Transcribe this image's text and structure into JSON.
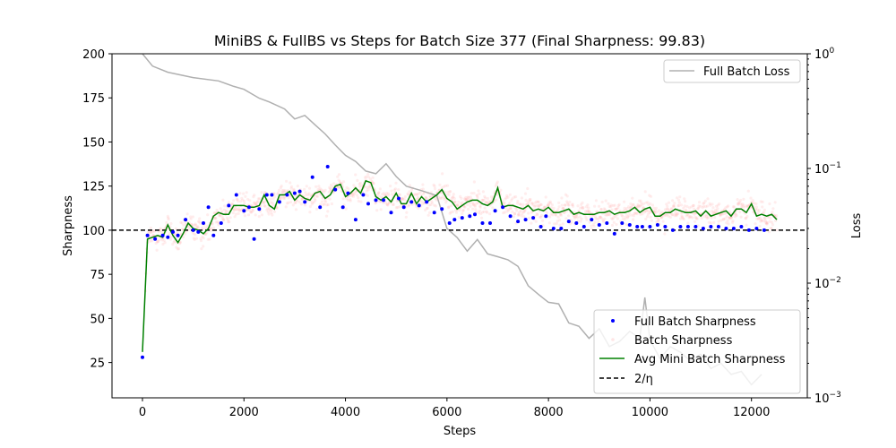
{
  "chart_data": {
    "type": "line",
    "title": "MiniBS & FullBS vs Steps for Batch Size 377 (Final Sharpness: 99.83)",
    "xlabel": "Steps",
    "ylabel": "Sharpness",
    "y2label": "Loss",
    "xlim": [
      -600,
      13100
    ],
    "ylim": [
      5,
      200
    ],
    "y2lim": [
      0.001,
      1
    ],
    "y2scale": "log",
    "xticks": [
      0,
      2000,
      4000,
      6000,
      8000,
      10000,
      12000
    ],
    "xtick_labels": [
      "0",
      "2000",
      "4000",
      "6000",
      "8000",
      "10000",
      "12000"
    ],
    "yticks": [
      25,
      50,
      75,
      100,
      125,
      150,
      175,
      200
    ],
    "ytick_labels": [
      "25",
      "50",
      "75",
      "100",
      "125",
      "150",
      "175",
      "200"
    ],
    "y2ticks": [
      0.001,
      0.01,
      0.1,
      1
    ],
    "y2tick_labels": [
      "10",
      "10",
      "10",
      "10"
    ],
    "y2tick_exponents": [
      "−3",
      "−2",
      "−1",
      "0"
    ],
    "threshold": 100,
    "colors": {
      "full_batch_loss": "#b0b0b0",
      "full_batch_sharpness": "#0000ff",
      "batch_sharpness": "#ff9999",
      "avg_mini_batch": "#008000",
      "threshold": "#000000"
    },
    "legend_loss": {
      "position": "upper-right",
      "entries": [
        "Full Batch Loss"
      ]
    },
    "legend_sharpness": {
      "position": "lower-right",
      "entries": [
        "Full Batch Sharpness",
        "Batch Sharpness",
        "Avg Mini Batch Sharpness",
        "2/η"
      ]
    },
    "series": [
      {
        "name": "Full Batch Loss",
        "axis": "right",
        "x": [
          0,
          200,
          500,
          1000,
          1500,
          1800,
          2000,
          2300,
          2500,
          2800,
          3000,
          3200,
          3400,
          3600,
          3800,
          4000,
          4200,
          4400,
          4600,
          4800,
          5000,
          5200,
          5500,
          5800,
          6000,
          6200,
          6400,
          6600,
          6800,
          7000,
          7200,
          7400,
          7600,
          7800,
          8000,
          8200,
          8400,
          8600,
          8800,
          9000,
          9200,
          9400,
          9600,
          9800,
          9900,
          10000,
          10200,
          10400,
          10600,
          10800,
          11000,
          11200,
          11400,
          11600,
          11800,
          12000,
          12200
        ],
        "y": [
          1.0,
          0.78,
          0.69,
          0.62,
          0.58,
          0.52,
          0.49,
          0.41,
          0.38,
          0.33,
          0.27,
          0.29,
          0.24,
          0.2,
          0.16,
          0.13,
          0.115,
          0.095,
          0.09,
          0.11,
          0.085,
          0.07,
          0.064,
          0.058,
          0.03,
          0.025,
          0.019,
          0.024,
          0.018,
          0.017,
          0.016,
          0.014,
          0.0095,
          0.008,
          0.0068,
          0.0066,
          0.0045,
          0.0042,
          0.0033,
          0.004,
          0.0028,
          0.0031,
          0.0038,
          0.0033,
          0.0075,
          0.0032,
          0.0022,
          0.0028,
          0.0025,
          0.0021,
          0.0024,
          0.0018,
          0.002,
          0.0016,
          0.0017,
          0.0013,
          0.0016
        ]
      },
      {
        "name": "Full Batch Sharpness",
        "axis": "left",
        "x": [
          0,
          100,
          250,
          400,
          500,
          600,
          700,
          850,
          1000,
          1100,
          1200,
          1300,
          1400,
          1550,
          1700,
          1850,
          2000,
          2100,
          2200,
          2300,
          2450,
          2550,
          2700,
          2850,
          3000,
          3100,
          3200,
          3350,
          3500,
          3650,
          3800,
          3950,
          4050,
          4200,
          4350,
          4450,
          4600,
          4750,
          4900,
          5050,
          5150,
          5300,
          5450,
          5600,
          5750,
          5900,
          6050,
          6150,
          6300,
          6450,
          6550,
          6700,
          6850,
          6950,
          7100,
          7250,
          7400,
          7550,
          7700,
          7850,
          7950,
          8100,
          8250,
          8400,
          8550,
          8700,
          8850,
          9000,
          9150,
          9300,
          9450,
          9600,
          9750,
          9850,
          10000,
          10150,
          10300,
          10450,
          10600,
          10750,
          10900,
          11050,
          11200,
          11350,
          11500,
          11650,
          11800,
          11950,
          12100,
          12250
        ],
        "y": [
          28,
          97,
          95,
          97,
          96,
          99,
          97,
          106,
          100,
          99,
          104,
          113,
          97,
          104,
          114,
          120,
          111,
          113,
          95,
          112,
          120,
          120,
          116,
          120,
          121,
          122,
          116,
          130,
          113,
          136,
          123,
          113,
          121,
          106,
          120,
          115,
          117,
          117,
          110,
          118,
          113,
          116,
          114,
          116,
          110,
          112,
          104,
          106,
          107,
          108,
          109,
          104,
          104,
          111,
          113,
          108,
          105,
          106,
          107,
          102,
          108,
          101,
          101,
          105,
          104,
          102,
          106,
          103,
          104,
          98,
          104,
          103,
          102,
          102,
          102,
          103,
          102,
          100,
          102,
          102,
          102,
          101,
          102,
          102,
          101,
          101,
          102,
          100,
          101,
          100
        ]
      },
      {
        "name": "Avg Mini Batch Sharpness",
        "axis": "left",
        "x": [
          0,
          100,
          200,
          300,
          400,
          500,
          600,
          700,
          800,
          900,
          1000,
          1100,
          1200,
          1300,
          1400,
          1500,
          1600,
          1700,
          1800,
          1900,
          2000,
          2100,
          2200,
          2300,
          2400,
          2500,
          2600,
          2700,
          2800,
          2900,
          3000,
          3100,
          3200,
          3300,
          3400,
          3500,
          3600,
          3700,
          3800,
          3900,
          4000,
          4100,
          4200,
          4300,
          4400,
          4500,
          4600,
          4700,
          4800,
          4900,
          5000,
          5100,
          5200,
          5300,
          5400,
          5500,
          5600,
          5700,
          5800,
          5900,
          6000,
          6100,
          6200,
          6300,
          6400,
          6500,
          6600,
          6700,
          6800,
          6900,
          7000,
          7100,
          7200,
          7300,
          7400,
          7500,
          7600,
          7700,
          7800,
          7900,
          8000,
          8100,
          8200,
          8300,
          8400,
          8500,
          8600,
          8700,
          8800,
          8900,
          9000,
          9100,
          9200,
          9300,
          9400,
          9500,
          9600,
          9700,
          9800,
          9900,
          10000,
          10100,
          10200,
          10300,
          10400,
          10500,
          10600,
          10700,
          10800,
          10900,
          11000,
          11100,
          11200,
          11300,
          11400,
          11500,
          11600,
          11700,
          11800,
          11900,
          12000,
          12100,
          12200,
          12300,
          12400,
          12500
        ],
        "y": [
          31,
          95,
          96,
          97,
          96,
          103,
          97,
          93,
          98,
          104,
          101,
          100,
          98,
          101,
          108,
          110,
          109,
          109,
          114,
          114,
          114,
          113,
          113,
          114,
          120,
          114,
          112,
          120,
          120,
          122,
          117,
          120,
          118,
          117,
          121,
          122,
          118,
          120,
          125,
          126,
          119,
          121,
          124,
          121,
          128,
          127,
          119,
          117,
          119,
          116,
          121,
          115,
          115,
          121,
          115,
          119,
          116,
          118,
          120,
          123,
          118,
          116,
          112,
          114,
          116,
          117,
          117,
          115,
          114,
          116,
          124,
          113,
          114,
          114,
          113,
          112,
          114,
          111,
          112,
          111,
          113,
          110,
          110,
          111,
          112,
          109,
          110,
          109,
          109,
          109,
          110,
          110,
          111,
          109,
          110,
          110,
          111,
          113,
          110,
          112,
          113,
          108,
          108,
          110,
          110,
          112,
          111,
          110,
          110,
          111,
          108,
          111,
          108,
          109,
          110,
          111,
          108,
          112,
          112,
          110,
          115,
          108,
          109,
          108,
          109,
          106
        ]
      }
    ]
  }
}
